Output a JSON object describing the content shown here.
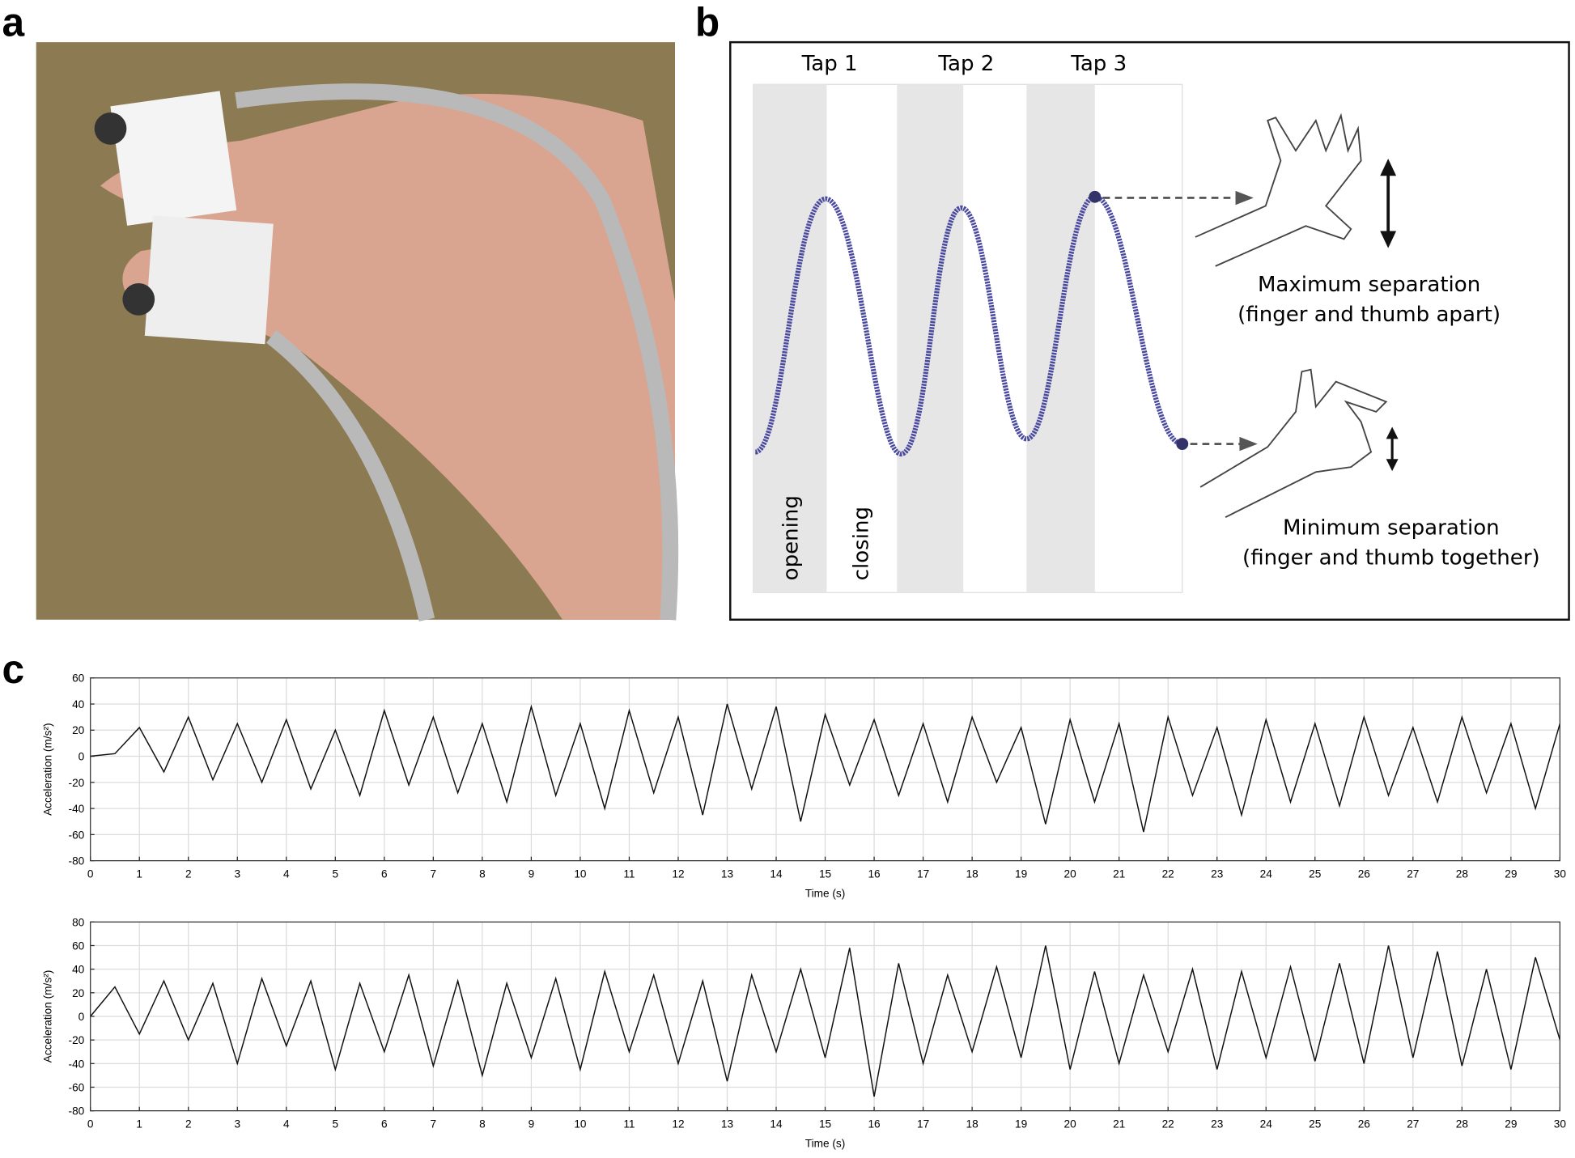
{
  "panel_labels": {
    "a": "a",
    "b": "b",
    "c": "c"
  },
  "diagram": {
    "taps": [
      "Tap 1",
      "Tap 2",
      "Tap 3"
    ],
    "phases": [
      "opening",
      "closing"
    ],
    "maximum": {
      "title": "Maximum separation",
      "detail": "(finger and thumb apart)"
    },
    "minimum": {
      "title": "Minimum separation",
      "detail": "(finger and thumb together)"
    }
  },
  "chart_data": [
    {
      "type": "line",
      "xlabel": "Time (s)",
      "ylabel": "Acceleration (m/s²)",
      "color": "#111111",
      "grid": true,
      "x": [
        0,
        0.5,
        1,
        1.5,
        2,
        2.5,
        3,
        3.5,
        4,
        4.5,
        5,
        5.5,
        6,
        6.5,
        7,
        7.5,
        8,
        8.5,
        9,
        9.5,
        10,
        10.5,
        11,
        11.5,
        12,
        12.5,
        13,
        13.5,
        14,
        14.5,
        15,
        15.5,
        16,
        16.5,
        17,
        17.5,
        18,
        18.5,
        19,
        19.5,
        20,
        20.5,
        21,
        21.5,
        22,
        22.5,
        23,
        23.5,
        24,
        24.5,
        25,
        25.5,
        26,
        26.5,
        27,
        27.5,
        28,
        28.5,
        29,
        29.5,
        30
      ],
      "values": [
        0,
        2,
        22,
        -12,
        30,
        -18,
        25,
        -20,
        28,
        -25,
        20,
        -30,
        35,
        -22,
        30,
        -28,
        25,
        -35,
        38,
        -30,
        25,
        -40,
        35,
        -28,
        30,
        -45,
        40,
        -25,
        38,
        -50,
        32,
        -22,
        28,
        -30,
        25,
        -35,
        30,
        -20,
        22,
        -52,
        28,
        -35,
        25,
        -58,
        30,
        -30,
        22,
        -45,
        28,
        -35,
        25,
        -38,
        30,
        -30,
        22,
        -35,
        30,
        -28,
        25,
        -40,
        25
      ],
      "xlim": [
        0,
        30
      ],
      "xticks": [
        0,
        1,
        2,
        3,
        4,
        5,
        6,
        7,
        8,
        9,
        10,
        11,
        12,
        13,
        14,
        15,
        16,
        17,
        18,
        19,
        20,
        21,
        22,
        23,
        24,
        25,
        26,
        27,
        28,
        29,
        30
      ],
      "ylim": [
        -80,
        60
      ],
      "yticks": [
        -80,
        -60,
        -40,
        -20,
        0,
        20,
        40,
        60
      ]
    },
    {
      "type": "line",
      "xlabel": "Time (s)",
      "ylabel": "Acceleration (m/s²)",
      "color": "#111111",
      "grid": true,
      "x": [
        0,
        0.5,
        1,
        1.5,
        2,
        2.5,
        3,
        3.5,
        4,
        4.5,
        5,
        5.5,
        6,
        6.5,
        7,
        7.5,
        8,
        8.5,
        9,
        9.5,
        10,
        10.5,
        11,
        11.5,
        12,
        12.5,
        13,
        13.5,
        14,
        14.5,
        15,
        15.5,
        16,
        16.5,
        17,
        17.5,
        18,
        18.5,
        19,
        19.5,
        20,
        20.5,
        21,
        21.5,
        22,
        22.5,
        23,
        23.5,
        24,
        24.5,
        25,
        25.5,
        26,
        26.5,
        27,
        27.5,
        28,
        28.5,
        29,
        29.5,
        30
      ],
      "values": [
        0,
        25,
        -15,
        30,
        -20,
        28,
        -40,
        32,
        -25,
        30,
        -45,
        28,
        -30,
        35,
        -42,
        30,
        -50,
        28,
        -35,
        32,
        -45,
        38,
        -30,
        35,
        -40,
        30,
        -55,
        35,
        -30,
        40,
        -35,
        58,
        -68,
        45,
        -40,
        35,
        -30,
        42,
        -35,
        60,
        -45,
        38,
        -40,
        35,
        -30,
        40,
        -45,
        38,
        -35,
        42,
        -38,
        45,
        -40,
        60,
        -35,
        55,
        -42,
        40,
        -45,
        50,
        -20
      ],
      "xlim": [
        0,
        30
      ],
      "xticks": [
        0,
        1,
        2,
        3,
        4,
        5,
        6,
        7,
        8,
        9,
        10,
        11,
        12,
        13,
        14,
        15,
        16,
        17,
        18,
        19,
        20,
        21,
        22,
        23,
        24,
        25,
        26,
        27,
        28,
        29,
        30
      ],
      "ylim": [
        -80,
        80
      ],
      "yticks": [
        -80,
        -60,
        -40,
        -20,
        0,
        20,
        40,
        60,
        80
      ]
    }
  ]
}
